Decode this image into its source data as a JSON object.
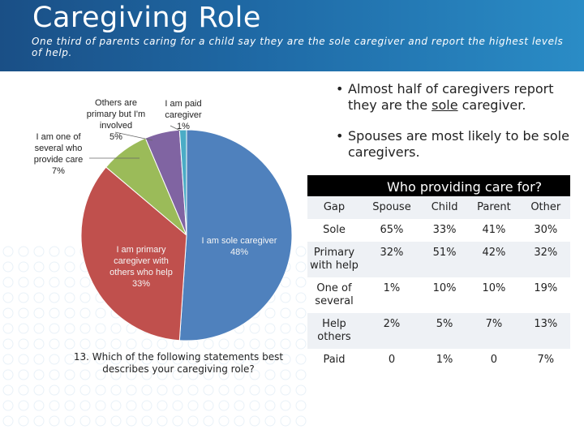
{
  "header": {
    "title": "Caregiving Role",
    "subtitle": "One third of parents caring for a child say they are the sole caregiver and report the highest levels of help."
  },
  "chart_data": {
    "type": "pie",
    "title": "",
    "slices": [
      {
        "label_lines": [
          "I am sole caregiver",
          "48%"
        ],
        "value": 48,
        "color": "#4f81bd"
      },
      {
        "label_lines": [
          "I am primary",
          "caregiver with",
          "others who help",
          "33%"
        ],
        "value": 33,
        "color": "#c0504d"
      },
      {
        "label_lines": [
          "I am one of",
          "several who",
          "provide care",
          "7%"
        ],
        "value": 7,
        "color": "#9bbb59"
      },
      {
        "label_lines": [
          "Others are",
          "primary but I'm",
          "involved",
          "5%"
        ],
        "value": 5,
        "color": "#8064a2"
      },
      {
        "label_lines": [
          "I am paid",
          "caregiver",
          "1%"
        ],
        "value": 1,
        "color": "#4bacc6"
      }
    ]
  },
  "question": "13. Which of the following statements best describes your caregiving role?",
  "bullets": {
    "b1": {
      "pre": "Almost half of caregivers report they are the ",
      "emph": "sole",
      "post": " caregiver."
    },
    "b2": {
      "text": "Spouses are most likely to be sole caregivers."
    },
    "marker": "•"
  },
  "table": {
    "title": "Who providing care for?",
    "headers": [
      "Gap",
      "Spouse",
      "Child",
      "Parent",
      "Other"
    ],
    "rows": [
      {
        "label": "Sole",
        "cells": [
          "65%",
          "33%",
          "41%",
          "30%"
        ]
      },
      {
        "label": "Primary with help",
        "cells": [
          "32%",
          "51%",
          "42%",
          "32%"
        ]
      },
      {
        "label": "One of several",
        "cells": [
          "1%",
          "10%",
          "10%",
          "19%"
        ]
      },
      {
        "label": "Help others",
        "cells": [
          "2%",
          "5%",
          "7%",
          "13%"
        ]
      },
      {
        "label": "Paid",
        "cells": [
          "0",
          "1%",
          "0",
          "7%"
        ]
      }
    ]
  }
}
